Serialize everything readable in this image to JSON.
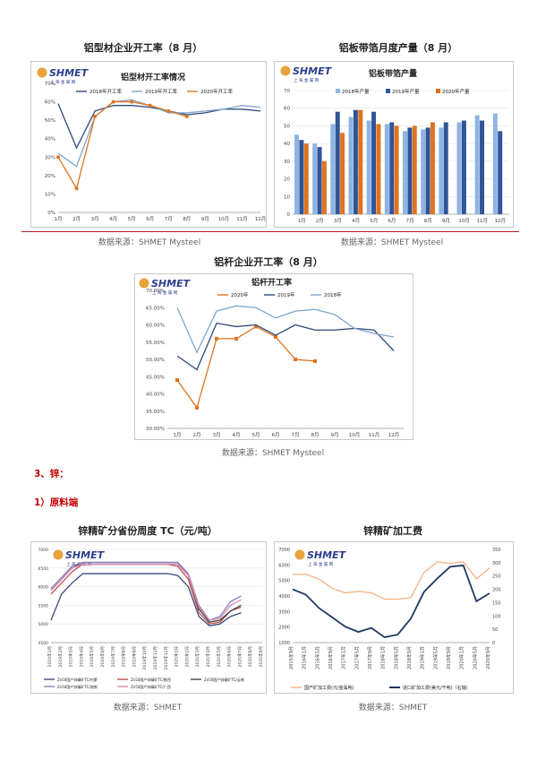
{
  "brand": {
    "logo": "SHMET",
    "logo_sub": "上 海 金 属 网"
  },
  "titles": {
    "c1": "铝型材企业开工率（8 月）",
    "c2": "铝板带箔月度产量（8 月）",
    "c3": "铝杆企业开工率（8 月）",
    "c4": "锌精矿分省份周度 TC（元/吨）",
    "c5": "锌精矿加工费"
  },
  "sources": {
    "s1": "数据来源：SHMET Mysteel",
    "s2": "数据来源：SHMET Mysteel",
    "s3": "数据来源：SHMET Mysteel",
    "s4": "数据来源：SHMET",
    "s5": "数据来源：SHMET"
  },
  "sections": {
    "zinc": "3、锌：",
    "raw": "1）原料端"
  },
  "chart_data": [
    {
      "type": "line",
      "title": "铝型材开工率情况",
      "categories": [
        "1月",
        "2月",
        "3月",
        "4月",
        "5月",
        "6月",
        "7月",
        "8月",
        "9月",
        "10月",
        "11月",
        "12月"
      ],
      "ylim": [
        0,
        70
      ],
      "yticks": [
        "0%",
        "10%",
        "20%",
        "30%",
        "40%",
        "50%",
        "60%",
        "70%"
      ],
      "legend": "top",
      "series": [
        {
          "name": "2018年开工率",
          "color": "#2e4a7a",
          "values": [
            59,
            35,
            55,
            58,
            58,
            57,
            55,
            53,
            54,
            56,
            56,
            55
          ]
        },
        {
          "name": "2019年开工率",
          "color": "#7fa5cc",
          "values": [
            32,
            25,
            52,
            60,
            61,
            58,
            54,
            54,
            55,
            56,
            58,
            57
          ]
        },
        {
          "name": "2020年开工率",
          "color": "#e0731f",
          "values": [
            30,
            13,
            52,
            60,
            60,
            58,
            55,
            52,
            null,
            null,
            null,
            null
          ]
        }
      ]
    },
    {
      "type": "bar",
      "title": "铝板带箔产量",
      "categories": [
        "1月",
        "2月",
        "3月",
        "4月",
        "5月",
        "6月",
        "7月",
        "8月",
        "9月",
        "10月",
        "11月",
        "12月"
      ],
      "ylim": [
        0,
        70
      ],
      "yticks": [
        "0",
        "10",
        "20",
        "30",
        "40",
        "50",
        "60",
        "70"
      ],
      "legend": "top",
      "series": [
        {
          "name": "2018年产量",
          "color": "#8fb4e3",
          "values": [
            45,
            40,
            51,
            55,
            53,
            51,
            47,
            48,
            49,
            52,
            56,
            57
          ]
        },
        {
          "name": "2019年产量",
          "color": "#2f5597",
          "values": [
            42,
            38,
            58,
            59,
            58,
            52,
            49,
            49,
            52,
            53,
            53,
            47
          ]
        },
        {
          "name": "2020年产量",
          "color": "#e0731f",
          "values": [
            40,
            30,
            46,
            59,
            51,
            50,
            50,
            52,
            null,
            null,
            null,
            null
          ]
        }
      ]
    },
    {
      "type": "line",
      "title": "铝杆开工率",
      "categories": [
        "1月",
        "2月",
        "3月",
        "4月",
        "5月",
        "6月",
        "7月",
        "8月",
        "9月",
        "10月",
        "11月",
        "12月"
      ],
      "ylim": [
        30,
        70
      ],
      "yticks": [
        "30.00%",
        "35.00%",
        "40.00%",
        "45.00%",
        "50.00%",
        "55.00%",
        "60.00%",
        "65.00%",
        "70.00%"
      ],
      "legend": "top",
      "series": [
        {
          "name": "2020年",
          "color": "#e0731f",
          "values": [
            44,
            36,
            56,
            56,
            59.5,
            56.5,
            50,
            49.5,
            null,
            null,
            null,
            null
          ]
        },
        {
          "name": "2019年",
          "color": "#2e4a7a",
          "values": [
            51,
            47,
            60.5,
            59.5,
            60,
            57,
            60,
            58.5,
            58.5,
            59,
            58.5,
            52.5
          ]
        },
        {
          "name": "2018年",
          "color": "#7fa5cc",
          "values": [
            65,
            52,
            64,
            65.5,
            65,
            62,
            64,
            64.5,
            63,
            59,
            57.5,
            56.5
          ]
        }
      ]
    },
    {
      "type": "line",
      "title": "",
      "categories": [
        "2019年1月",
        "2019年2月",
        "2019年3月",
        "2019年4月",
        "2019年5月",
        "2019年6月",
        "2019年7月",
        "2019年8月",
        "2019年9月",
        "2019年10月",
        "2019年11月",
        "2019年12月",
        "2020年1月",
        "2020年2月",
        "2020年3月",
        "2020年4月",
        "2020年5月",
        "2020年6月",
        "2020年7月",
        "2020年8月",
        "2020年9月"
      ],
      "ylim": [
        4500,
        7000
      ],
      "yticks": [
        "4500",
        "5000",
        "5500",
        "6000",
        "6500",
        "7000"
      ],
      "legend": "bottom",
      "series": [
        {
          "name": "Zn50国产锌精矿TC/内蒙",
          "color": "#3a4c7a",
          "values": [
            5100,
            5800,
            6100,
            6350,
            6350,
            6350,
            6350,
            6350,
            6350,
            6350,
            6350,
            6350,
            6300,
            6000,
            5200,
            4950,
            5000,
            5200,
            5300,
            null,
            null
          ]
        },
        {
          "name": "Zn50国产锌精矿TC/陕西",
          "color": "#c0504d",
          "values": [
            5800,
            6100,
            6400,
            6600,
            6600,
            6600,
            6600,
            6600,
            6600,
            6600,
            6600,
            6600,
            6550,
            6200,
            5300,
            5000,
            5050,
            5350,
            5450,
            null,
            null
          ]
        },
        {
          "name": "Zn50国产锌精矿TC/云南",
          "color": "#404040",
          "values": [
            5900,
            6200,
            6500,
            6650,
            6650,
            6650,
            6650,
            6650,
            6650,
            6650,
            6650,
            6650,
            6650,
            6300,
            5400,
            5050,
            5100,
            5350,
            5500,
            null,
            null
          ]
        },
        {
          "name": "Zn50国产锌精矿TC/湖南",
          "color": "#8b7fb8",
          "values": [
            5950,
            6250,
            6550,
            6650,
            6650,
            6650,
            6650,
            6650,
            6650,
            6650,
            6650,
            6650,
            6650,
            6350,
            5500,
            5100,
            5200,
            5600,
            5750,
            null,
            null
          ]
        },
        {
          "name": "Zn50国产锌精矿TC/广西",
          "color": "#d98cb3",
          "values": [
            5900,
            6200,
            6500,
            6600,
            6600,
            6600,
            6600,
            6600,
            6600,
            6600,
            6600,
            6600,
            6600,
            6300,
            5450,
            5100,
            5150,
            5500,
            5650,
            null,
            null
          ]
        }
      ]
    },
    {
      "type": "line",
      "title": "",
      "categories": [
        "2015年9月",
        "2016年1月",
        "2016年5月",
        "2016年9月",
        "2017年1月",
        "2017年5月",
        "2017年9月",
        "2018年1月",
        "2018年5月",
        "2018年9月",
        "2019年1月",
        "2019年5月",
        "2019年9月",
        "2020年1月",
        "2020年5月",
        "2020年9月"
      ],
      "ylim": [
        1000,
        7000
      ],
      "yticks": [
        "1000",
        "2000",
        "3000",
        "4000",
        "5000",
        "6000",
        "7000"
      ],
      "y2lim": [
        0,
        350
      ],
      "y2ticks": [
        "0",
        "50",
        "100",
        "150",
        "200",
        "250",
        "300",
        "350"
      ],
      "legend": "bottom",
      "series": [
        {
          "name": "国产矿加工费(元/金属吨)",
          "color": "#f4b183",
          "values": [
            5400,
            5400,
            5100,
            4500,
            4200,
            4300,
            4200,
            3800,
            3800,
            3900,
            5500,
            6200,
            6100,
            6200,
            5100,
            5800
          ]
        },
        {
          "name": "进口矿加工费(美元/干吨)（右轴）",
          "color": "#1f3864",
          "axis": "right",
          "values": [
            200,
            180,
            130,
            95,
            60,
            40,
            55,
            20,
            30,
            90,
            190,
            240,
            285,
            290,
            155,
            185
          ]
        }
      ]
    }
  ]
}
